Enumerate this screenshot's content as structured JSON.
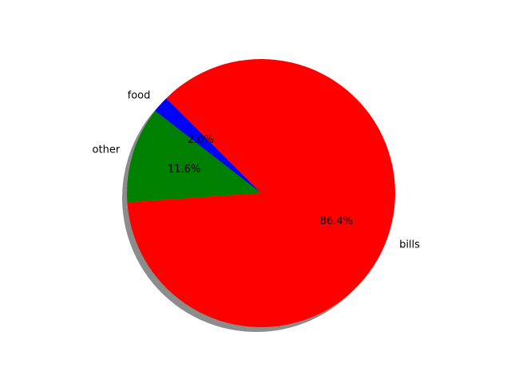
{
  "chart_data": {
    "type": "pie",
    "title": "",
    "slices": [
      {
        "label": "food",
        "value": 2.0,
        "pct_label": "2.0%",
        "color": "#0000ff"
      },
      {
        "label": "other",
        "value": 11.6,
        "pct_label": "11.6%",
        "color": "#008000"
      },
      {
        "label": "bills",
        "value": 86.4,
        "pct_label": "86.4%",
        "color": "#ff0000"
      }
    ],
    "start_angle_deg": 135,
    "direction": "counterclockwise",
    "shadow": true,
    "shadow_color": "#7f7f7f"
  }
}
